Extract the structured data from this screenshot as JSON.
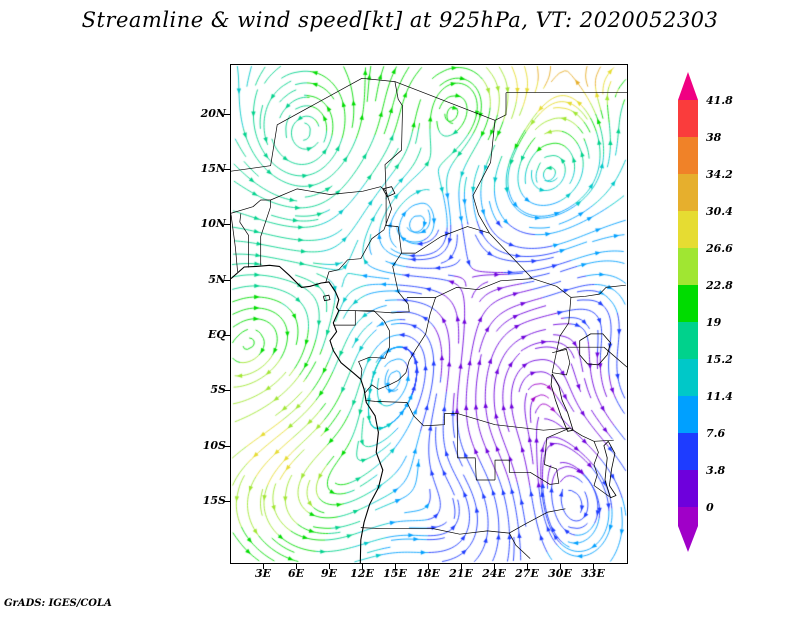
{
  "title": "Streamline & wind speed[kt] at 925hPa, VT: 2020052303",
  "attribution": "GrADS: IGES/COLA",
  "axes": {
    "lat_ticks": [
      {
        "label": "20N",
        "lat": 20
      },
      {
        "label": "15N",
        "lat": 15
      },
      {
        "label": "10N",
        "lat": 10
      },
      {
        "label": "5N",
        "lat": 5
      },
      {
        "label": "EQ",
        "lat": 0
      },
      {
        "label": "5S",
        "lat": -5
      },
      {
        "label": "10S",
        "lat": -10
      },
      {
        "label": "15S",
        "lat": -15
      }
    ],
    "lon_ticks": [
      {
        "label": "3E",
        "lon": 3
      },
      {
        "label": "6E",
        "lon": 6
      },
      {
        "label": "9E",
        "lon": 9
      },
      {
        "label": "12E",
        "lon": 12
      },
      {
        "label": "15E",
        "lon": 15
      },
      {
        "label": "18E",
        "lon": 18
      },
      {
        "label": "21E",
        "lon": 21
      },
      {
        "label": "24E",
        "lon": 24
      },
      {
        "label": "27E",
        "lon": 27
      },
      {
        "label": "30E",
        "lon": 30
      },
      {
        "label": "33E",
        "lon": 33
      }
    ]
  },
  "colorbar": {
    "labels_top_to_bottom": [
      "41.8",
      "38",
      "34.2",
      "30.4",
      "26.6",
      "22.8",
      "19",
      "15.2",
      "11.4",
      "7.6",
      "3.8",
      "0"
    ],
    "colors_top_to_bottom": [
      "#f00082",
      "#fa3c3c",
      "#f08228",
      "#e6af2d",
      "#e6dc32",
      "#a0e632",
      "#00dc00",
      "#00d28c",
      "#00c8c8",
      "#00a0ff",
      "#1e3cff",
      "#6e00dc",
      "#a000c8"
    ]
  },
  "chart_data": {
    "type": "streamline-map",
    "variable": "wind speed",
    "units": "kt",
    "level": "925hPa",
    "valid_time": "2020052303",
    "lon_range": [
      0,
      36
    ],
    "lat_range": [
      -20.5,
      24.5
    ],
    "contour_levels": [
      0,
      3.8,
      7.6,
      11.4,
      15.2,
      19,
      22.8,
      26.6,
      30.4,
      34.2,
      38,
      41.8
    ],
    "palette_bottom_to_top": [
      "#a000c8",
      "#6e00dc",
      "#1e3cff",
      "#00a0ff",
      "#00c8c8",
      "#00d28c",
      "#00dc00",
      "#a0e632",
      "#e6dc32",
      "#e6af2d",
      "#f08228",
      "#fa3c3c",
      "#f00082"
    ],
    "legend_position": "right",
    "grid": false,
    "flow": {
      "base": 12,
      "uniform": [
        0.05,
        -0.01
      ],
      "vortices": [
        {
          "a": 0.57,
          "b": 0.07,
          "s": 0.035,
          "r": 0.1
        },
        {
          "a": 0.2,
          "b": 0.18,
          "s": -0.03,
          "r": 0.13
        },
        {
          "a": 0.45,
          "b": 0.32,
          "s": 0.03,
          "r": 0.12
        },
        {
          "a": 0.8,
          "b": 0.25,
          "s": -0.028,
          "r": 0.12
        },
        {
          "a": 0.1,
          "b": 0.6,
          "s": 0.04,
          "r": 0.18
        },
        {
          "a": 0.45,
          "b": 0.58,
          "s": -0.032,
          "r": 0.13
        },
        {
          "a": 0.73,
          "b": 0.62,
          "s": 0.035,
          "r": 0.14
        },
        {
          "a": 0.22,
          "b": 0.82,
          "s": -0.05,
          "r": 0.2
        },
        {
          "a": 0.86,
          "b": 0.88,
          "s": 0.03,
          "r": 0.12
        },
        {
          "a": 0.58,
          "b": 0.92,
          "s": -0.025,
          "r": 0.11
        },
        {
          "a": 0.92,
          "b": 0.45,
          "s": 0.02,
          "r": 0.1
        }
      ],
      "speed_centers": [
        {
          "a": 0.13,
          "b": 0.8,
          "r": 0.2,
          "amp": 16
        },
        {
          "a": 0.8,
          "b": 0.02,
          "r": 0.12,
          "amp": 18
        },
        {
          "a": 0.93,
          "b": 0.0,
          "r": 0.06,
          "amp": 10
        },
        {
          "a": 0.3,
          "b": 0.03,
          "r": 0.14,
          "amp": 8
        },
        {
          "a": 0.55,
          "b": 0.1,
          "r": 0.12,
          "amp": 6
        },
        {
          "a": 0.02,
          "b": 0.4,
          "r": 0.25,
          "amp": 4
        },
        {
          "a": 0.6,
          "b": 0.5,
          "r": 0.2,
          "amp": -9
        },
        {
          "a": 0.88,
          "b": 0.7,
          "r": 0.15,
          "amp": -8
        },
        {
          "a": 0.5,
          "b": 0.95,
          "r": 0.25,
          "amp": -6
        }
      ]
    }
  },
  "geo": {
    "coastline": [
      [
        0,
        5.2
      ],
      [
        1.2,
        6.25
      ],
      [
        2.3,
        6.3
      ],
      [
        3.5,
        6.4
      ],
      [
        4.4,
        6.3
      ],
      [
        5.3,
        5.5
      ],
      [
        6.4,
        4.4
      ],
      [
        7.2,
        4.5
      ],
      [
        8.2,
        4.8
      ],
      [
        8.9,
        4.9
      ],
      [
        9.5,
        4.0
      ],
      [
        9.8,
        3.3
      ],
      [
        9.6,
        2.6
      ],
      [
        9.8,
        2.3
      ],
      [
        9.3,
        1.2
      ],
      [
        9.6,
        0.4
      ],
      [
        9.0,
        -0.4
      ],
      [
        9.3,
        -1.3
      ],
      [
        10.0,
        -2.4
      ],
      [
        11.1,
        -3.3
      ],
      [
        11.8,
        -3.9
      ],
      [
        12.1,
        -4.8
      ],
      [
        12.3,
        -6.0
      ],
      [
        13.1,
        -7.2
      ],
      [
        13.4,
        -8.7
      ],
      [
        13.2,
        -10.5
      ],
      [
        13.8,
        -12.1
      ],
      [
        13.4,
        -13.7
      ],
      [
        12.6,
        -15.2
      ],
      [
        12.1,
        -16.8
      ],
      [
        11.8,
        -18.4
      ],
      [
        11.75,
        -20.5
      ]
    ],
    "borders": [
      [
        [
          0.6,
          5.8
        ],
        [
          0.4,
          8.0
        ],
        [
          0.0,
          11.0
        ]
      ],
      [
        [
          1.6,
          6.2
        ],
        [
          1.6,
          9.1
        ],
        [
          0.8,
          10.3
        ],
        [
          0.9,
          11.1
        ]
      ],
      [
        [
          2.7,
          6.4
        ],
        [
          2.7,
          9.0
        ],
        [
          3.6,
          11.7
        ],
        [
          3.6,
          12.3
        ]
      ],
      [
        [
          3.6,
          12.3
        ],
        [
          6.0,
          13.3
        ],
        [
          9.0,
          12.8
        ],
        [
          12.0,
          13.1
        ],
        [
          13.6,
          13.5
        ],
        [
          14.1,
          13.1
        ]
      ],
      [
        [
          0,
          11.1
        ],
        [
          2.0,
          11.7
        ],
        [
          2.7,
          12.3
        ],
        [
          3.6,
          12.3
        ]
      ],
      [
        [
          0,
          14.9
        ],
        [
          3.6,
          15.4
        ],
        [
          4.2,
          19.1
        ],
        [
          11.9,
          23.3
        ],
        [
          14.9,
          23.0
        ],
        [
          15.2,
          21.4
        ],
        [
          15.6,
          20.8
        ],
        [
          15.5,
          16.8
        ],
        [
          14.0,
          15.5
        ],
        [
          14.1,
          13.1
        ]
      ],
      [
        [
          14.9,
          23.0
        ],
        [
          24.0,
          19.5
        ],
        [
          25.0,
          20.0
        ],
        [
          25.0,
          22.0
        ]
      ],
      [
        [
          25.0,
          22.0
        ],
        [
          36.0,
          22.0
        ]
      ],
      [
        [
          24.0,
          19.5
        ],
        [
          23.6,
          15.7
        ],
        [
          22.0,
          12.7
        ],
        [
          22.5,
          11.0
        ],
        [
          23.5,
          9.3
        ]
      ],
      [
        [
          23.5,
          9.3
        ],
        [
          21.5,
          9.9
        ],
        [
          19.1,
          9.0
        ],
        [
          16.8,
          7.5
        ],
        [
          15.5,
          7.5
        ],
        [
          15.2,
          9.9
        ],
        [
          14.1,
          10.0
        ],
        [
          14.1,
          13.1
        ]
      ],
      [
        [
          14.1,
          13.1
        ],
        [
          14.6,
          11.5
        ],
        [
          13.9,
          9.6
        ],
        [
          12.8,
          8.8
        ],
        [
          11.8,
          7.0
        ],
        [
          10.6,
          6.9
        ],
        [
          9.8,
          6.0
        ],
        [
          8.9,
          5.8
        ],
        [
          8.6,
          4.8
        ]
      ],
      [
        [
          23.5,
          9.3
        ],
        [
          25.2,
          7.5
        ],
        [
          27.4,
          5.2
        ],
        [
          29.6,
          4.5
        ],
        [
          30.9,
          3.5
        ],
        [
          30.7,
          1.2
        ],
        [
          29.9,
          0.0
        ],
        [
          29.6,
          -1.4
        ],
        [
          29.2,
          -3.3
        ]
      ],
      [
        [
          16.0,
          3.5
        ],
        [
          18.6,
          3.5
        ],
        [
          20.5,
          4.4
        ],
        [
          22.5,
          4.2
        ],
        [
          24.5,
          5.0
        ],
        [
          27.4,
          5.2
        ]
      ],
      [
        [
          15.5,
          7.5
        ],
        [
          14.7,
          6.3
        ],
        [
          15.2,
          4.0
        ],
        [
          16.1,
          2.9
        ],
        [
          16.2,
          2.2
        ],
        [
          14.7,
          2.1
        ],
        [
          13.3,
          2.2
        ],
        [
          11.3,
          2.3
        ],
        [
          9.8,
          2.3
        ]
      ],
      [
        [
          9.8,
          2.3
        ],
        [
          11.3,
          2.3
        ],
        [
          11.3,
          1.0
        ],
        [
          9.3,
          1.0
        ]
      ],
      [
        [
          11.3,
          2.3
        ],
        [
          13.0,
          2.3
        ],
        [
          13.9,
          1.4
        ],
        [
          14.4,
          0.5
        ],
        [
          14.4,
          -1.0
        ],
        [
          14.0,
          -2.0
        ],
        [
          12.6,
          -1.9
        ],
        [
          11.6,
          -2.3
        ],
        [
          11.9,
          -3.0
        ],
        [
          11.8,
          -3.9
        ]
      ],
      [
        [
          18.6,
          3.5
        ],
        [
          18.1,
          2.0
        ],
        [
          17.7,
          0.2
        ],
        [
          16.8,
          -1.2
        ],
        [
          16.2,
          -2.2
        ],
        [
          15.9,
          -3.3
        ],
        [
          15.2,
          -4.0
        ],
        [
          14.4,
          -4.4
        ],
        [
          13.4,
          -4.8
        ],
        [
          12.8,
          -4.4
        ],
        [
          12.2,
          -5.1
        ]
      ],
      [
        [
          12.2,
          -5.8
        ],
        [
          13.1,
          -5.9
        ],
        [
          16.0,
          -6.0
        ],
        [
          16.6,
          -7.2
        ],
        [
          17.5,
          -8.1
        ],
        [
          19.4,
          -8.0
        ],
        [
          19.4,
          -7.0
        ],
        [
          20.6,
          -7.0
        ],
        [
          20.6,
          -11.0
        ],
        [
          22.2,
          -11.0
        ],
        [
          22.3,
          -13.0
        ],
        [
          24.0,
          -13.0
        ]
      ],
      [
        [
          24.0,
          -13.0
        ],
        [
          24.0,
          -11.2
        ],
        [
          25.3,
          -11.2
        ],
        [
          25.3,
          -12.3
        ],
        [
          27.2,
          -12.3
        ],
        [
          29.0,
          -13.4
        ],
        [
          29.8,
          -13.3
        ],
        [
          29.6,
          -12.0
        ],
        [
          28.5,
          -11.6
        ],
        [
          28.7,
          -9.2
        ],
        [
          30.8,
          -8.3
        ]
      ],
      [
        [
          30.8,
          -8.3
        ],
        [
          31.9,
          -9.0
        ],
        [
          33.0,
          -9.5
        ],
        [
          34.8,
          -9.4
        ]
      ],
      [
        [
          33.0,
          -9.5
        ],
        [
          33.4,
          -10.5
        ],
        [
          33.0,
          -11.6
        ],
        [
          33.3,
          -12.5
        ],
        [
          33.0,
          -13.5
        ],
        [
          34.4,
          -14.5
        ]
      ],
      [
        [
          11.8,
          -17.3
        ],
        [
          13.9,
          -17.4
        ],
        [
          18.4,
          -17.4
        ],
        [
          20.8,
          -17.9
        ],
        [
          23.3,
          -17.6
        ],
        [
          25.3,
          -17.8
        ],
        [
          26.7,
          -17.0
        ],
        [
          28.8,
          -15.9
        ],
        [
          30.4,
          -15.6
        ]
      ],
      [
        [
          25.3,
          -17.8
        ],
        [
          25.9,
          -18.9
        ],
        [
          27.2,
          -20.1
        ]
      ],
      [
        [
          29.6,
          -1.4
        ],
        [
          30.7,
          -1.0
        ],
        [
          33.9,
          -1.0
        ]
      ],
      [
        [
          33.9,
          -1.0
        ],
        [
          36.0,
          -2.8
        ]
      ],
      [
        [
          30.9,
          3.5
        ],
        [
          32.2,
          3.6
        ],
        [
          33.5,
          3.8
        ],
        [
          34.1,
          4.4
        ],
        [
          35.9,
          4.6
        ]
      ],
      [
        [
          29.2,
          -1.5
        ],
        [
          30.5,
          -1.2
        ],
        [
          30.8,
          -2.4
        ],
        [
          30.5,
          -3.5
        ],
        [
          29.2,
          -3.3
        ]
      ],
      [
        [
          20.6,
          -7.0
        ],
        [
          24.0,
          -8.0
        ],
        [
          28.4,
          -8.5
        ],
        [
          30.8,
          -8.3
        ]
      ]
    ],
    "lakes": [
      [
        [
          31.7,
          -0.4
        ],
        [
          32.7,
          0.2
        ],
        [
          33.8,
          0.2
        ],
        [
          34.5,
          -0.6
        ],
        [
          34.2,
          -1.7
        ],
        [
          33.4,
          -2.6
        ],
        [
          32.4,
          -2.5
        ],
        [
          31.7,
          -1.7
        ],
        [
          31.7,
          -0.4
        ]
      ],
      [
        [
          29.2,
          -3.4
        ],
        [
          29.8,
          -4.5
        ],
        [
          30.1,
          -5.8
        ],
        [
          30.6,
          -6.9
        ],
        [
          31.1,
          -8.5
        ],
        [
          30.6,
          -8.6
        ],
        [
          30.0,
          -7.2
        ],
        [
          29.5,
          -5.8
        ],
        [
          29.1,
          -4.4
        ],
        [
          29.2,
          -3.4
        ]
      ],
      [
        [
          34.3,
          -9.5
        ],
        [
          34.9,
          -10.6
        ],
        [
          34.6,
          -12.0
        ],
        [
          34.4,
          -13.5
        ],
        [
          35.0,
          -14.4
        ],
        [
          34.5,
          -14.6
        ],
        [
          34.0,
          -13.0
        ],
        [
          34.2,
          -11.0
        ],
        [
          33.9,
          -9.9
        ],
        [
          34.3,
          -9.5
        ]
      ],
      [
        [
          13.8,
          13.3
        ],
        [
          14.6,
          13.5
        ],
        [
          14.9,
          12.9
        ],
        [
          14.2,
          12.6
        ],
        [
          13.8,
          13.3
        ]
      ],
      [
        [
          8.4,
          3.6
        ],
        [
          8.9,
          3.7
        ],
        [
          9.0,
          3.3
        ],
        [
          8.5,
          3.2
        ],
        [
          8.4,
          3.6
        ]
      ]
    ]
  }
}
